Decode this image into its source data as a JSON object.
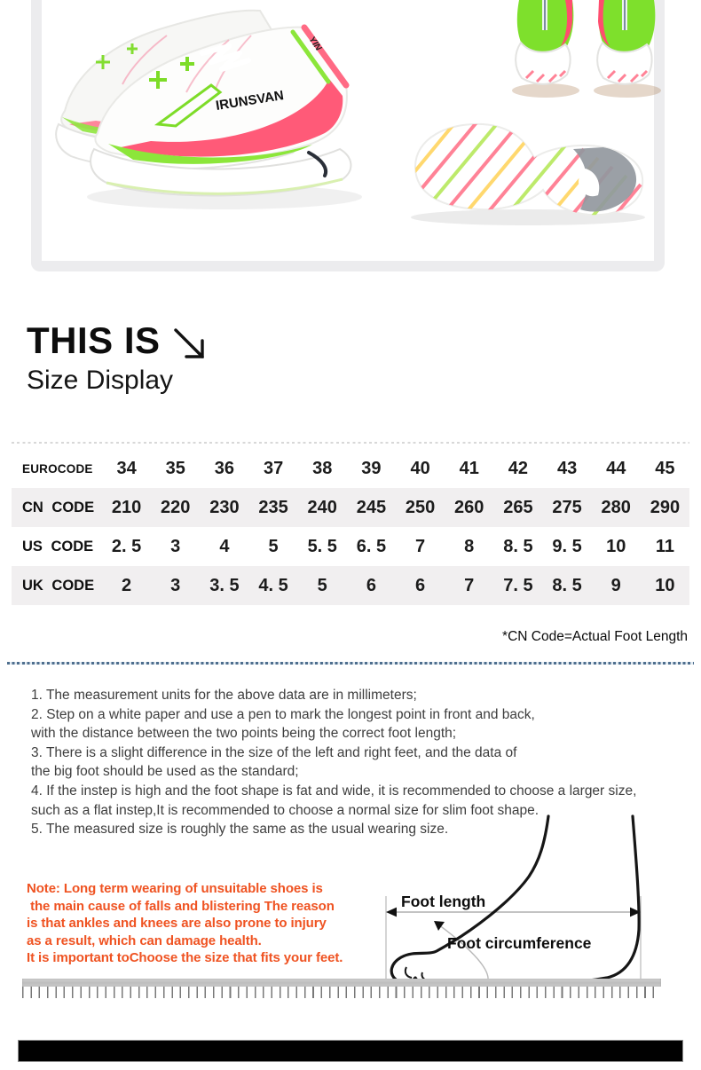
{
  "photos": {
    "brand_text": "IRUNSVAN",
    "collar_text": "YIN"
  },
  "heading": {
    "title": "THIS IS",
    "subtitle": "Size Display"
  },
  "size_table": {
    "rows": [
      {
        "label": "EUROCODE",
        "values": [
          "34",
          "35",
          "36",
          "37",
          "38",
          "39",
          "40",
          "41",
          "42",
          "43",
          "44",
          "45"
        ]
      },
      {
        "label": "CN CODE",
        "values": [
          "210",
          "220",
          "230",
          "235",
          "240",
          "245",
          "250",
          "260",
          "265",
          "275",
          "280",
          "290"
        ]
      },
      {
        "label": "US CODE",
        "values": [
          "2. 5",
          "3",
          "4",
          "5",
          "5. 5",
          "6. 5",
          "7",
          "8",
          "8. 5",
          "9. 5",
          "10",
          "11"
        ]
      },
      {
        "label": "UK CODE",
        "values": [
          "2",
          "3",
          "3. 5",
          "4. 5",
          "5",
          "6",
          "6",
          "7",
          "7. 5",
          "8. 5",
          "9",
          "10"
        ]
      }
    ],
    "footnote": "*CN Code=Actual Foot Length"
  },
  "instructions": {
    "lines": [
      "1. The measurement units for the above data are in millimeters;",
      "2. Step on a white paper and use a pen to mark the longest point in front and back,",
      "with the distance between the two points being the correct foot length;",
      "3. There is a slight difference in the size of the left and right feet, and the data of",
      "the big foot should be used as the standard;",
      "4. If the instep is high and the foot shape is fat and wide, it is recommended to choose a larger size,",
      "such as a flat instep,It is recommended to choose a normal size for slim foot shape.",
      "5. The measured size is roughly the same as the usual wearing size."
    ]
  },
  "note": {
    "lines": [
      "Note: Long term wearing of unsuitable shoes is",
      " the main cause of falls and blistering The reason",
      "is that ankles and knees are also prone to injury",
      "as a result, which can damage health.",
      "It is important toChoose the size that fits your feet."
    ],
    "color": "#ef5322"
  },
  "diagram": {
    "foot_length_label": "Foot length",
    "foot_circumference_label": "Foot circumference"
  },
  "colors": {
    "note_orange": "#ef5322",
    "neon_green": "#82e22c",
    "pink": "#ff5a78",
    "dotted_blue": "#4e6e8e",
    "table_row_gray": "#f1eff0",
    "frame_gray": "#ececee"
  }
}
